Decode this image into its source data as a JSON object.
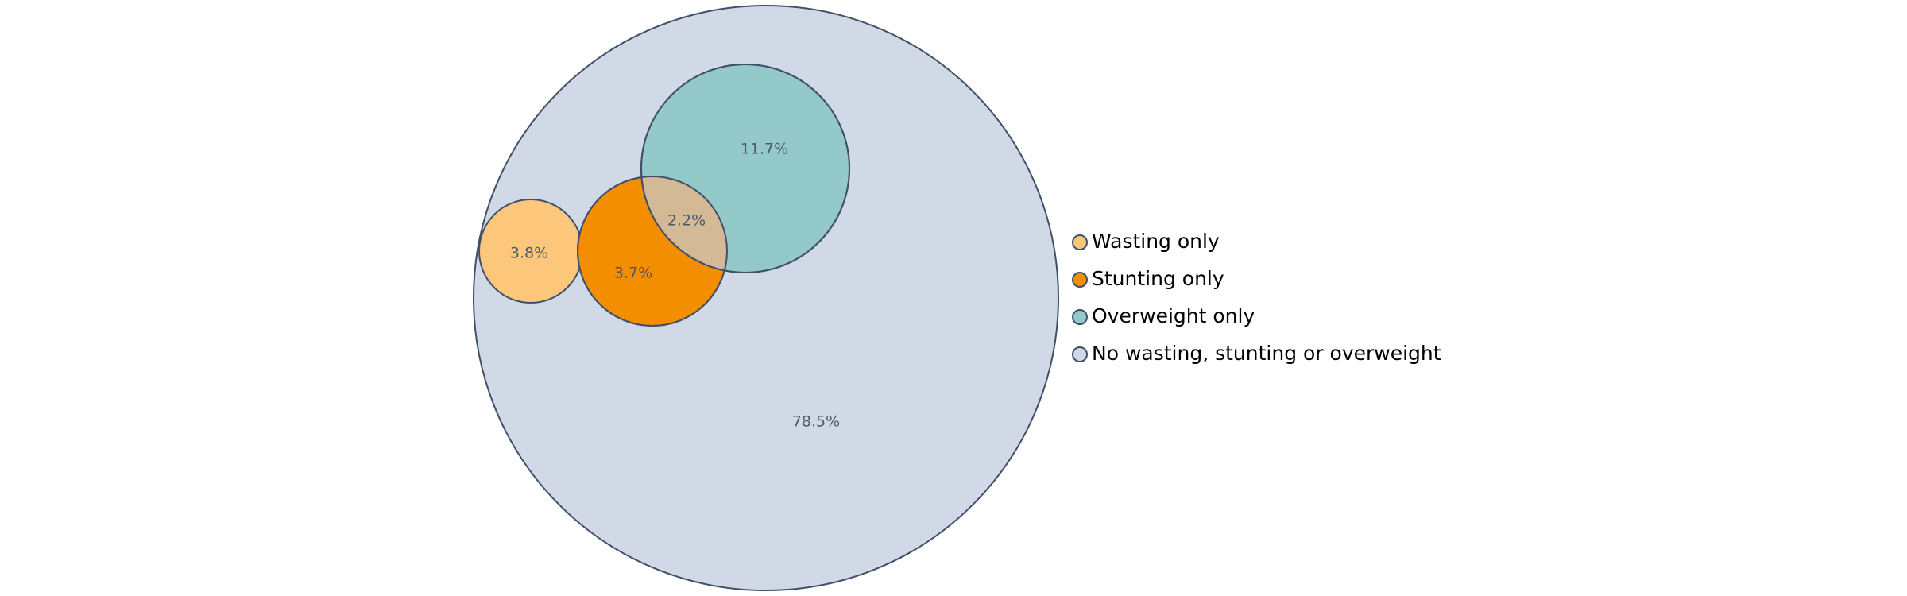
{
  "chart_data": {
    "type": "venn",
    "title": "",
    "series": [
      {
        "name": "Wasting only",
        "value": 3.8,
        "label": "3.8%",
        "color": "#fdc77b"
      },
      {
        "name": "Stunting only",
        "value": 3.7,
        "label": "3.7%",
        "color": "#f28e00"
      },
      {
        "name": "Overweight only",
        "value": 11.7,
        "label": "11.7%",
        "color": "#94c9c9"
      },
      {
        "name": "No wasting, stunting or overweight",
        "value": 78.5,
        "label": "78.5%",
        "color": "#d0d9e5"
      }
    ],
    "overlaps": [
      {
        "sets": [
          "Stunting only",
          "Overweight only"
        ],
        "value": 2.2,
        "label": "2.2%",
        "color": "#d4b996"
      }
    ],
    "legend_position": "right",
    "edge_color": "#3f5068"
  }
}
